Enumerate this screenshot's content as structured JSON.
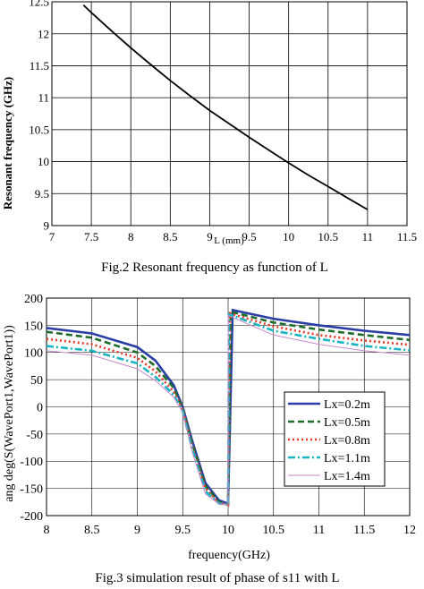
{
  "chart_data": [
    {
      "type": "line",
      "title": "",
      "xlabel": "L (mm)",
      "ylabel": "Resonant frequency (GHz)",
      "xlim": [
        7,
        11.5
      ],
      "ylim": [
        9,
        12.5
      ],
      "x_ticks": [
        "7",
        "7.5",
        "8",
        "8.5",
        "9",
        "9.5",
        "10",
        "10.5",
        "11",
        "11.5"
      ],
      "y_ticks": [
        "9",
        "9.5",
        "10",
        "10.5",
        "11",
        "11.5",
        "12",
        "12.5"
      ],
      "grid": true,
      "caption": "Fig.2 Resonant frequency as function of L",
      "series": [
        {
          "color": "#000000",
          "x": [
            7.4,
            7.5,
            7.75,
            8.0,
            8.25,
            8.5,
            8.75,
            9.0,
            9.25,
            9.5,
            9.75,
            10.0,
            10.25,
            10.5,
            10.75,
            11.0
          ],
          "y": [
            12.45,
            12.33,
            12.05,
            11.78,
            11.52,
            11.27,
            11.03,
            10.8,
            10.59,
            10.38,
            10.18,
            9.98,
            9.79,
            9.61,
            9.43,
            9.25
          ]
        }
      ]
    },
    {
      "type": "line",
      "title": "",
      "xlabel": "frequency(GHz)",
      "ylabel": "ang deg(S(WavePort1,WavePort1))",
      "xlim": [
        8,
        12
      ],
      "ylim": [
        -200,
        200
      ],
      "x_ticks": [
        "8",
        "8.5",
        "9",
        "9.5",
        "10",
        "10.5",
        "11",
        "11.5",
        "12"
      ],
      "y_ticks": [
        "200",
        "150",
        "100",
        "50",
        "0",
        "-50",
        "-100",
        "-150",
        "-200"
      ],
      "grid": true,
      "legend_position": "lower-right",
      "caption": "Fig.3 simulation result of phase of s11 with L",
      "series": [
        {
          "name": "Lx=0.2m",
          "color": "#2b3ea6",
          "dash": "solid",
          "jump_x": 10.05,
          "left_x": [
            8,
            8.5,
            9.0,
            9.2,
            9.4,
            9.5,
            9.6,
            9.75,
            9.9,
            10.0
          ],
          "left_y": [
            145,
            135,
            110,
            85,
            40,
            0,
            -60,
            -140,
            -172,
            -178
          ],
          "right_x": [
            10.05,
            10.5,
            11.0,
            11.5,
            12.0
          ],
          "right_y": [
            178,
            162,
            150,
            140,
            132
          ]
        },
        {
          "name": "Lx=0.5m",
          "color": "#1e6b2a",
          "dash": "dashed",
          "jump_x": 10.03,
          "left_x": [
            8,
            8.5,
            9.0,
            9.2,
            9.4,
            9.5,
            9.6,
            9.75,
            9.9,
            10.0
          ],
          "left_y": [
            138,
            127,
            100,
            75,
            35,
            -3,
            -65,
            -145,
            -175,
            -180
          ],
          "right_x": [
            10.03,
            10.5,
            11.0,
            11.5,
            12.0
          ],
          "right_y": [
            175,
            155,
            142,
            132,
            123
          ]
        },
        {
          "name": "Lx=0.8m",
          "color": "#e8392a",
          "dash": "dotted",
          "jump_x": 10.02,
          "left_x": [
            8,
            8.5,
            9.0,
            9.2,
            9.4,
            9.5,
            9.6,
            9.75,
            9.9,
            10.0
          ],
          "left_y": [
            125,
            115,
            90,
            65,
            28,
            -5,
            -70,
            -150,
            -177,
            -180
          ],
          "right_x": [
            10.02,
            10.5,
            11.0,
            11.5,
            12.0
          ],
          "right_y": [
            172,
            148,
            132,
            122,
            114
          ]
        },
        {
          "name": "Lx=1.1m",
          "color": "#19b3c2",
          "dash": "dashdot",
          "jump_x": 10.01,
          "left_x": [
            8,
            8.5,
            9.0,
            9.2,
            9.4,
            9.5,
            9.6,
            9.75,
            9.9,
            10.0
          ],
          "left_y": [
            112,
            103,
            80,
            55,
            22,
            -8,
            -75,
            -155,
            -178,
            -180
          ],
          "right_x": [
            10.01,
            10.5,
            11.0,
            11.5,
            12.0
          ],
          "right_y": [
            170,
            140,
            125,
            112,
            104
          ]
        },
        {
          "name": "Lx=1.4m",
          "color": "#c88ac8",
          "dash": "solid",
          "jump_x": 10.0,
          "left_x": [
            8,
            8.5,
            9.0,
            9.2,
            9.4,
            9.5,
            9.6,
            9.75,
            9.9,
            10.0
          ],
          "left_y": [
            103,
            95,
            70,
            48,
            18,
            -10,
            -80,
            -160,
            -179,
            -180
          ],
          "right_x": [
            10.0,
            10.5,
            11.0,
            11.5,
            12.0
          ],
          "right_y": [
            168,
            132,
            115,
            103,
            95
          ]
        }
      ]
    }
  ]
}
